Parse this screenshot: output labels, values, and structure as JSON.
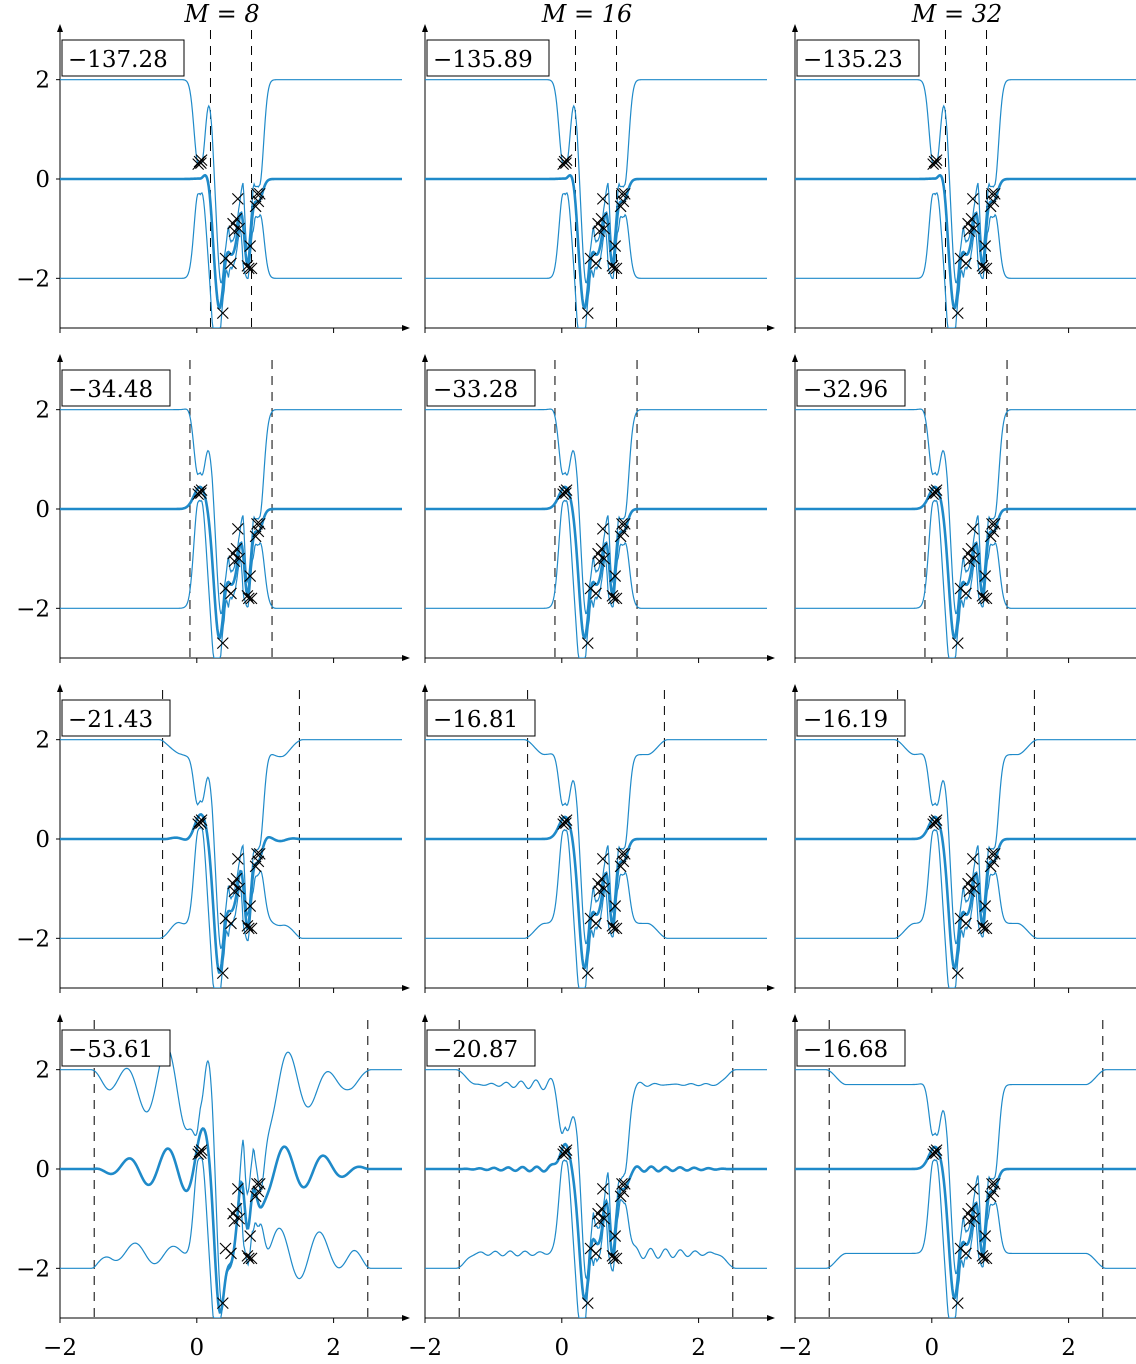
{
  "chart_data": {
    "type": "line",
    "x_range": [
      -2,
      3
    ],
    "y_range": [
      -3,
      3
    ],
    "x_ticks": [
      -2,
      0,
      2
    ],
    "y_ticks": [
      -2,
      0,
      2
    ],
    "x_tick_labels": [
      "−2",
      "0",
      "2"
    ],
    "y_tick_labels": [
      "−2",
      "0",
      "2"
    ],
    "column_titles": [
      "M = 8",
      "M = 16",
      "M = 32"
    ],
    "line_color": "#1f8ac9",
    "points": {
      "x": [
        0.02,
        0.04,
        0.06,
        0.07,
        0.38,
        0.42,
        0.5,
        0.53,
        0.55,
        0.58,
        0.6,
        0.62,
        0.74,
        0.76,
        0.78,
        0.8,
        0.86,
        0.88,
        0.9,
        0.92
      ],
      "y": [
        0.3,
        0.35,
        0.32,
        0.38,
        -2.7,
        -1.6,
        -1.7,
        -0.9,
        -1.05,
        -0.8,
        -0.4,
        -1.0,
        -1.75,
        -1.8,
        -1.35,
        -1.8,
        -0.55,
        -0.3,
        -0.45,
        -0.3
      ]
    },
    "rows": [
      {
        "scores": [
          "−137.28",
          "−135.89",
          "−135.23"
        ],
        "boundary": [
          0.2,
          0.8
        ]
      },
      {
        "scores": [
          "−34.48",
          "−33.28",
          "−32.96"
        ],
        "boundary": [
          -0.1,
          1.1
        ]
      },
      {
        "scores": [
          "−21.43",
          "−16.81",
          "−16.19"
        ],
        "boundary": [
          -0.5,
          1.5
        ]
      },
      {
        "scores": [
          "−53.61",
          "−20.87",
          "−16.68"
        ],
        "boundary": [
          -1.5,
          2.5
        ]
      }
    ]
  }
}
